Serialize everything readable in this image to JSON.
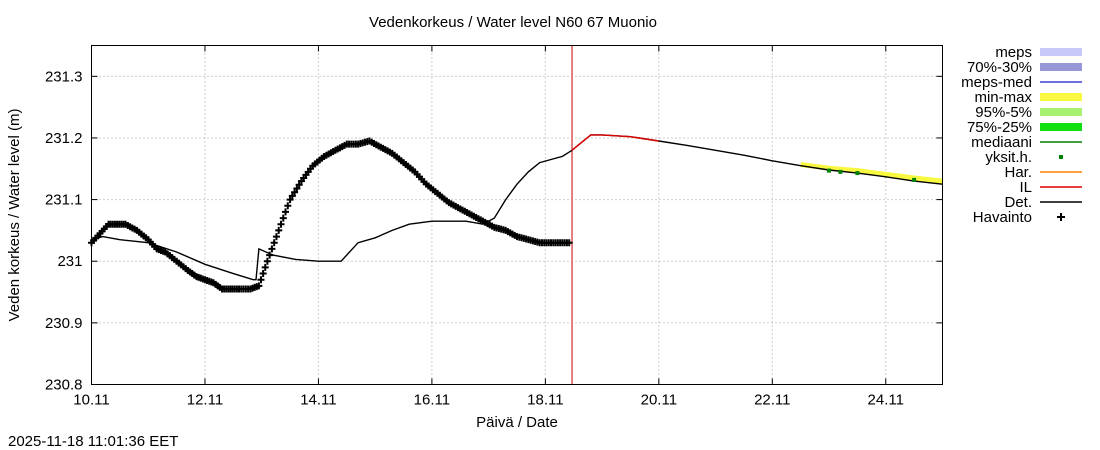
{
  "chart_data": {
    "type": "line",
    "title": "Vedenkorkeus / Water level   N60 67 Muonio",
    "xlabel": "Päivä / Date",
    "ylabel": "Veden korkeus / Water level (m)",
    "xlim": [
      10.0,
      25.0
    ],
    "ylim": [
      230.8,
      231.35
    ],
    "x_ticks": [
      {
        "value": 10,
        "label": "10.11"
      },
      {
        "value": 12,
        "label": "12.11"
      },
      {
        "value": 14,
        "label": "14.11"
      },
      {
        "value": 16,
        "label": "16.11"
      },
      {
        "value": 18,
        "label": "18.11"
      },
      {
        "value": 20,
        "label": "20.11"
      },
      {
        "value": 22,
        "label": "22.11"
      },
      {
        "value": 24,
        "label": "24.11"
      }
    ],
    "y_ticks": [
      {
        "value": 230.8,
        "label": "230.8"
      },
      {
        "value": 230.9,
        "label": "230.9"
      },
      {
        "value": 231.0,
        "label": "231"
      },
      {
        "value": 231.1,
        "label": "231.1"
      },
      {
        "value": 231.2,
        "label": "231.2"
      },
      {
        "value": 231.3,
        "label": "231.3"
      }
    ],
    "grid": true,
    "forecast_start": 18.47,
    "legend": [
      {
        "key": "meps",
        "label": "meps",
        "color": "#c8c8f8",
        "style": "band"
      },
      {
        "key": "p70_30",
        "label": "70%-30%",
        "color": "#9898d8",
        "style": "band"
      },
      {
        "key": "meps_med",
        "label": "meps-med",
        "color": "#4040d0",
        "style": "line"
      },
      {
        "key": "minmax",
        "label": "min-max",
        "color": "#f8f840",
        "style": "band"
      },
      {
        "key": "p95_5",
        "label": "95%-5%",
        "color": "#a8f070",
        "style": "band"
      },
      {
        "key": "p75_25",
        "label": "75%-25%",
        "color": "#10e010",
        "style": "band"
      },
      {
        "key": "median",
        "label": "mediaani",
        "color": "#008000",
        "style": "line"
      },
      {
        "key": "yksit",
        "label": "yksit.h.",
        "color": "#008000",
        "style": "dot"
      },
      {
        "key": "har",
        "label": "Har.",
        "color": "#ff8000",
        "style": "line"
      },
      {
        "key": "il",
        "label": "IL",
        "color": "#e00000",
        "style": "line"
      },
      {
        "key": "det",
        "label": "Det.",
        "color": "#000000",
        "style": "line"
      },
      {
        "key": "obs",
        "label": "Havainto",
        "color": "#000000",
        "style": "plus"
      }
    ],
    "series": [
      {
        "name": "Havainto",
        "style": "plus",
        "color": "#000000",
        "x": [
          10.0,
          10.15,
          10.3,
          10.45,
          10.6,
          10.8,
          11.0,
          11.15,
          11.3,
          11.5,
          11.7,
          11.85,
          12.0,
          12.15,
          12.3,
          12.45,
          12.6,
          12.8,
          12.95,
          13.1,
          13.3,
          13.5,
          13.7,
          13.9,
          14.1,
          14.3,
          14.5,
          14.7,
          14.9,
          15.1,
          15.3,
          15.5,
          15.7,
          15.9,
          16.1,
          16.3,
          16.5,
          16.7,
          16.9,
          17.1,
          17.3,
          17.5,
          17.7,
          17.9,
          18.1,
          18.3,
          18.42
        ],
        "y": [
          231.03,
          231.045,
          231.06,
          231.06,
          231.06,
          231.05,
          231.035,
          231.02,
          231.015,
          231.0,
          230.985,
          230.975,
          230.97,
          230.965,
          230.955,
          230.955,
          230.955,
          230.955,
          230.96,
          231.0,
          231.05,
          231.1,
          231.13,
          231.155,
          231.17,
          231.18,
          231.19,
          231.19,
          231.195,
          231.185,
          231.175,
          231.16,
          231.145,
          231.125,
          231.11,
          231.095,
          231.085,
          231.075,
          231.065,
          231.055,
          231.05,
          231.04,
          231.035,
          231.03,
          231.03,
          231.03,
          231.03
        ]
      },
      {
        "name": "Det.",
        "style": "line",
        "color": "#000000",
        "x": [
          10.0,
          10.2,
          10.5,
          11.0,
          11.5,
          12.0,
          12.5,
          12.85,
          12.9,
          12.95,
          13.2,
          13.6,
          14.0,
          14.4,
          14.7,
          15.0,
          15.3,
          15.6,
          16.0,
          16.3,
          16.6,
          16.9,
          17.1,
          17.3,
          17.5,
          17.7,
          17.9,
          18.1,
          18.3,
          18.47,
          18.6,
          18.8,
          19.0,
          19.5,
          20.0,
          20.5,
          21.0,
          21.5,
          22.0,
          22.5,
          23.0,
          23.5,
          24.0,
          24.5,
          25.0
        ],
        "y": [
          231.035,
          231.04,
          231.035,
          231.03,
          231.015,
          230.995,
          230.98,
          230.97,
          230.97,
          231.02,
          231.01,
          231.003,
          231.0,
          231.0,
          231.03,
          231.038,
          231.05,
          231.06,
          231.065,
          231.065,
          231.065,
          231.06,
          231.07,
          231.1,
          231.125,
          231.145,
          231.16,
          231.165,
          231.17,
          231.18,
          231.19,
          231.205,
          231.205,
          231.202,
          231.195,
          231.188,
          231.18,
          231.172,
          231.163,
          231.155,
          231.148,
          231.143,
          231.137,
          231.13,
          231.125
        ]
      },
      {
        "name": "min-max",
        "style": "line",
        "color": "#f8f840",
        "x": [
          22.5,
          23.0,
          23.5,
          24.0,
          24.5,
          25.0
        ],
        "y": [
          231.157,
          231.151,
          231.147,
          231.141,
          231.135,
          231.13
        ]
      },
      {
        "name": "IL",
        "style": "line",
        "color": "#e00000",
        "x": [
          18.47,
          18.8,
          19.0,
          19.5,
          20.0
        ],
        "y": [
          231.18,
          231.205,
          231.205,
          231.202,
          231.195
        ]
      },
      {
        "name": "yksit.h.",
        "style": "dot",
        "color": "#008000",
        "x": [
          23.0,
          23.2,
          23.5,
          24.5
        ],
        "y": [
          231.147,
          231.145,
          231.143,
          231.132
        ]
      }
    ]
  },
  "footer": {
    "timestamp": "2025-11-18 11:01:36 EET"
  }
}
